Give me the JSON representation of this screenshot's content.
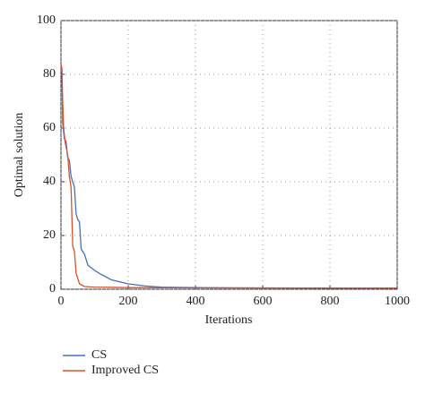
{
  "chart_data": {
    "type": "line",
    "xlabel": "Iterations",
    "ylabel": "Optimal solution",
    "xlim": [
      0,
      1000
    ],
    "xticks": [
      0,
      200,
      400,
      600,
      800,
      1000
    ],
    "ylim": [
      0,
      100
    ],
    "yticks": [
      0,
      20,
      40,
      60,
      80,
      100
    ],
    "grid": true,
    "legend": "below",
    "series": [
      {
        "name": "CS",
        "color": "#4a6fc0",
        "x": [
          0,
          3,
          5,
          10,
          15,
          20,
          25,
          30,
          35,
          40,
          45,
          50,
          55,
          60,
          70,
          80,
          90,
          100,
          120,
          150,
          200,
          250,
          300,
          400,
          600,
          800,
          1000
        ],
        "values": [
          83,
          80,
          62,
          56,
          55,
          49,
          48,
          42,
          40,
          38,
          28,
          26,
          25,
          15,
          13,
          9,
          8,
          7,
          5.5,
          3.5,
          2,
          1.2,
          0.8,
          0.6,
          0.5,
          0.4,
          0.4
        ]
      },
      {
        "name": "Improved CS",
        "color": "#d9532b",
        "x": [
          0,
          3,
          5,
          8,
          12,
          15,
          20,
          25,
          30,
          35,
          40,
          45,
          50,
          55,
          70,
          100,
          200,
          400,
          1000
        ],
        "values": [
          84,
          82,
          70,
          60,
          55,
          53,
          50,
          42,
          38,
          16,
          14,
          6,
          4,
          2,
          1,
          0.8,
          0.6,
          0.5,
          0.4
        ]
      }
    ]
  }
}
